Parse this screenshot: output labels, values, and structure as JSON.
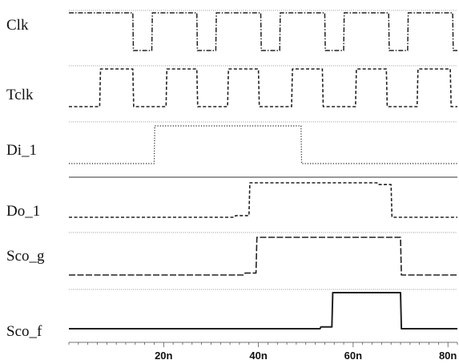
{
  "chart_data": {
    "type": "line",
    "title": "",
    "xlabel": "",
    "ylabel": "",
    "x_unit": "ns",
    "xlim": [
      0,
      82
    ],
    "x_ticks": [
      20,
      40,
      60,
      80
    ],
    "x_tick_labels": [
      "20n",
      "40n",
      "60n",
      "80n"
    ],
    "grid": false,
    "legend": "none",
    "colors": {
      "trace": "#222222",
      "rule": "#777777",
      "text": "#111111"
    },
    "series": [
      {
        "name": "Clk",
        "style": "dash-dot",
        "transitions": [
          [
            0,
            1
          ],
          [
            13.5,
            0
          ],
          [
            17.5,
            1
          ],
          [
            27,
            0
          ],
          [
            31,
            1
          ],
          [
            40.5,
            0
          ],
          [
            44.5,
            1
          ],
          [
            54,
            0
          ],
          [
            58,
            1
          ],
          [
            67.5,
            0
          ],
          [
            71.5,
            1
          ],
          [
            81,
            0
          ]
        ]
      },
      {
        "name": "Tclk",
        "style": "dashed",
        "transitions": [
          [
            0,
            0
          ],
          [
            6.5,
            1
          ],
          [
            13.5,
            0
          ],
          [
            20.5,
            1
          ],
          [
            27,
            0
          ],
          [
            33.5,
            1
          ],
          [
            40,
            0
          ],
          [
            47,
            1
          ],
          [
            53.5,
            0
          ],
          [
            60.5,
            1
          ],
          [
            67,
            0
          ],
          [
            73.5,
            1
          ],
          [
            80.5,
            0
          ]
        ]
      },
      {
        "name": "Di_1",
        "style": "dotted",
        "transitions": [
          [
            0,
            0
          ],
          [
            18,
            1
          ],
          [
            49,
            0
          ]
        ]
      },
      {
        "name": "Do_1",
        "style": "dashed",
        "transitions": [
          [
            0,
            0
          ],
          [
            35,
            0.05
          ],
          [
            38,
            1
          ],
          [
            65,
            0.95
          ],
          [
            68,
            0
          ]
        ]
      },
      {
        "name": "Sco_g",
        "style": "long-dash",
        "transitions": [
          [
            0,
            0
          ],
          [
            37,
            0.05
          ],
          [
            39.5,
            1
          ],
          [
            68,
            1
          ],
          [
            70,
            0
          ]
        ]
      },
      {
        "name": "Sco_f",
        "style": "solid",
        "transitions": [
          [
            0,
            0
          ],
          [
            53,
            0.05
          ],
          [
            55.5,
            1
          ],
          [
            68.5,
            1
          ],
          [
            70,
            0
          ]
        ]
      }
    ]
  }
}
